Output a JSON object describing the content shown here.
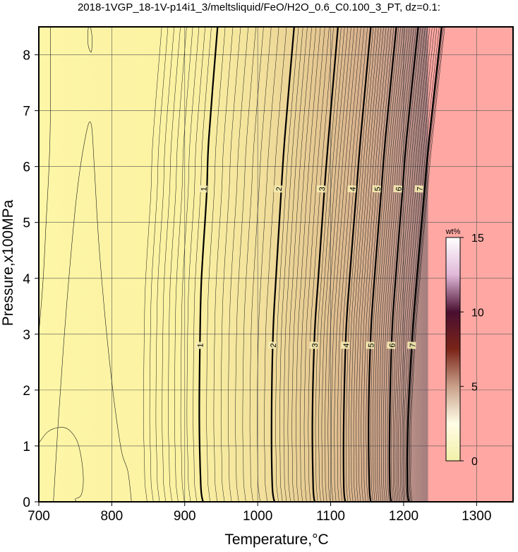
{
  "chart_data": {
    "type": "heatmap",
    "title": "2018-1VGP_18-1V-p14i1_3/meltsliquid/FeO/H2O_0.6_C0.100_3_PT, dz=0.1:",
    "xlabel": "Temperature,°C",
    "ylabel": "Pressure,x100MPa",
    "xlim": [
      700,
      1350
    ],
    "ylim": [
      0,
      8.5
    ],
    "x_ticks": [
      700,
      800,
      900,
      1000,
      1100,
      1200,
      1300
    ],
    "y_ticks": [
      0,
      1,
      2,
      3,
      4,
      5,
      6,
      7,
      8
    ],
    "grid": true,
    "colorbar": {
      "title": "wt%",
      "range": [
        0,
        15
      ],
      "ticks": [
        0,
        5,
        10,
        15
      ],
      "placement": "right-inside",
      "colors": [
        "#f2f0a8",
        "#fffde6",
        "#c9a08a",
        "#7a2418",
        "#4a0f30",
        "#e0b8d8",
        "#ffffff"
      ]
    },
    "background_colors": {
      "low": "#fdf6a6",
      "high": "#ffa8a3"
    },
    "labeled_contours": [
      {
        "value": 1,
        "points": [
          [
            925,
            0
          ],
          [
            922,
            0.3
          ],
          [
            920,
            1.5
          ],
          [
            921,
            3.0
          ],
          [
            923,
            4.0
          ],
          [
            930,
            5.5
          ],
          [
            933,
            6.5
          ],
          [
            945,
            8.5
          ]
        ]
      },
      {
        "value": 2,
        "points": [
          [
            1023,
            0
          ],
          [
            1020,
            0.3
          ],
          [
            1019,
            1.5
          ],
          [
            1021,
            3.0
          ],
          [
            1025,
            4.0
          ],
          [
            1032,
            5.5
          ],
          [
            1037,
            6.5
          ],
          [
            1050,
            8.5
          ]
        ]
      },
      {
        "value": 3,
        "points": [
          [
            1078,
            0
          ],
          [
            1076,
            0.3
          ],
          [
            1075,
            1.5
          ],
          [
            1078,
            3.0
          ],
          [
            1083,
            4.0
          ],
          [
            1091,
            5.5
          ],
          [
            1097,
            6.5
          ],
          [
            1110,
            8.5
          ]
        ]
      },
      {
        "value": 4,
        "points": [
          [
            1120,
            0
          ],
          [
            1118,
            0.3
          ],
          [
            1118,
            1.5
          ],
          [
            1121,
            3.0
          ],
          [
            1126,
            4.0
          ],
          [
            1135,
            5.5
          ],
          [
            1141,
            6.5
          ],
          [
            1155,
            8.5
          ]
        ]
      },
      {
        "value": 5,
        "points": [
          [
            1155,
            0
          ],
          [
            1153,
            0.3
          ],
          [
            1152,
            1.5
          ],
          [
            1155,
            3.0
          ],
          [
            1160,
            4.0
          ],
          [
            1169,
            5.5
          ],
          [
            1175,
            6.5
          ],
          [
            1190,
            8.5
          ]
        ]
      },
      {
        "value": 6,
        "points": [
          [
            1183,
            0
          ],
          [
            1181,
            0.3
          ],
          [
            1181,
            1.5
          ],
          [
            1184,
            3.0
          ],
          [
            1189,
            4.0
          ],
          [
            1198,
            5.5
          ],
          [
            1204,
            6.5
          ],
          [
            1220,
            8.5
          ]
        ]
      },
      {
        "value": 7,
        "points": [
          [
            1207,
            0
          ],
          [
            1205,
            0.3
          ],
          [
            1206,
            1.5
          ],
          [
            1212,
            3.0
          ],
          [
            1218,
            4.0
          ],
          [
            1228,
            5.5
          ],
          [
            1235,
            6.5
          ],
          [
            1252,
            8.5
          ]
        ]
      }
    ],
    "contour_labels": [
      {
        "text": "1",
        "x": 926,
        "y": 5.6
      },
      {
        "text": "1",
        "x": 921,
        "y": 2.8
      },
      {
        "text": "2",
        "x": 1029,
        "y": 5.6
      },
      {
        "text": "2",
        "x": 1021,
        "y": 2.8
      },
      {
        "text": "3",
        "x": 1088,
        "y": 5.6
      },
      {
        "text": "3",
        "x": 1078,
        "y": 2.8
      },
      {
        "text": "4",
        "x": 1130,
        "y": 5.6
      },
      {
        "text": "4",
        "x": 1121,
        "y": 2.8
      },
      {
        "text": "5",
        "x": 1164,
        "y": 5.6
      },
      {
        "text": "5",
        "x": 1155,
        "y": 2.8
      },
      {
        "text": "6",
        "x": 1193,
        "y": 5.6
      },
      {
        "text": "6",
        "x": 1184,
        "y": 2.8
      },
      {
        "text": "7",
        "x": 1222,
        "y": 5.6
      },
      {
        "text": "7",
        "x": 1212,
        "y": 2.8
      }
    ],
    "minor_contours": [
      {
        "points": [
          [
            700,
            3.0
          ],
          [
            706,
            4.0
          ],
          [
            710,
            5.0
          ],
          [
            714,
            6.0
          ],
          [
            716,
            7.0
          ],
          [
            716,
            8.5
          ]
        ]
      },
      {
        "points": [
          [
            720,
            0
          ],
          [
            727,
            1.5
          ],
          [
            738,
            3.5
          ],
          [
            752,
            5.5
          ],
          [
            765,
            6.6
          ],
          [
            772,
            6.75
          ],
          [
            776,
            6.0
          ],
          [
            783,
            4.5
          ],
          [
            797,
            2.5
          ],
          [
            812,
            1.0
          ],
          [
            822,
            0.55
          ],
          [
            827,
            0
          ]
        ]
      },
      {
        "points": [
          [
            700,
            1.05
          ],
          [
            712,
            1.25
          ],
          [
            727,
            1.33
          ],
          [
            740,
            1.3
          ],
          [
            752,
            1.1
          ],
          [
            758,
            0.8
          ],
          [
            761,
            0.4
          ],
          [
            758,
            0.12
          ],
          [
            750,
            0.05
          ],
          [
            752,
            0
          ]
        ]
      },
      {
        "points": [
          [
            768,
            8.5
          ],
          [
            767,
            8.35
          ],
          [
            768,
            8.15
          ],
          [
            772,
            8.05
          ],
          [
            773,
            8.3
          ],
          [
            771,
            8.5
          ]
        ]
      }
    ]
  }
}
